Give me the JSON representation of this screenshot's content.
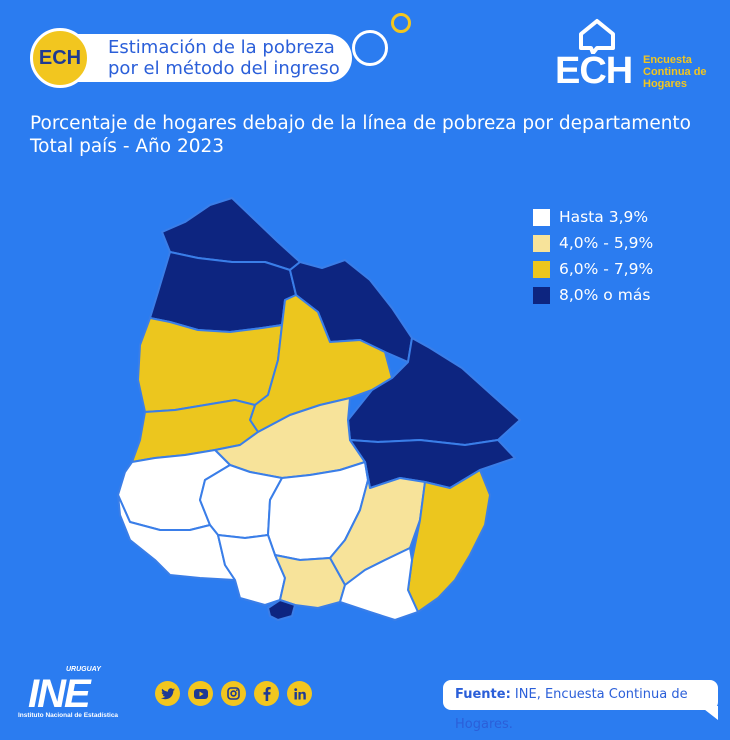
{
  "header": {
    "badge": "ECH",
    "line1": "Estimación de la pobreza",
    "line2": "por el método del ingreso"
  },
  "ech_logo": {
    "acronym": "ECH",
    "line1": "Encuesta",
    "line2": "Continua de",
    "line3": "Hogares"
  },
  "title": {
    "line1": "Porcentaje de hogares debajo de la línea de pobreza por departamento",
    "line2": "Total país - Año 2023"
  },
  "legend": [
    {
      "label": "Hasta 3,9%",
      "color": "#ffffff"
    },
    {
      "label": "4,0% - 5,9%",
      "color": "#f7e39a"
    },
    {
      "label": "6,0% - 7,9%",
      "color": "#ecc61e"
    },
    {
      "label": "8,0% o más",
      "color": "#0d2580"
    }
  ],
  "footer": {
    "ine_top": "URUGUAY",
    "ine_word": "INE",
    "ine_sub": "Instituto Nacional de Estadística",
    "social": [
      "twitter-icon",
      "youtube-icon",
      "instagram-icon",
      "facebook-icon",
      "linkedin-icon"
    ],
    "source_label": "Fuente:",
    "source_text": " INE, Encuesta Continua de Hogares."
  },
  "colors": {
    "background": "#2b7cf0",
    "accent": "#f2c61f",
    "dark": "#0d2580"
  }
}
